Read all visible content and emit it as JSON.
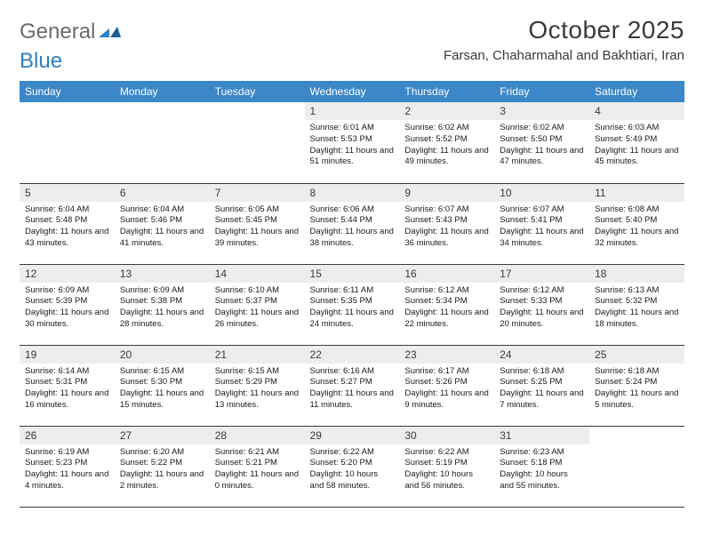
{
  "brand": {
    "part1": "General",
    "part2": "Blue"
  },
  "title": "October 2025",
  "location": "Farsan, Chaharmahal and Bakhtiari, Iran",
  "colors": {
    "header_bg": "#3b87c8",
    "header_fg": "#ffffff",
    "daynum_bg": "#ecedee",
    "text": "#3a3a3a",
    "logo_gray": "#6b6b6b",
    "logo_blue": "#2d7fc0",
    "rule": "#3a3a3a"
  },
  "weekdays": [
    "Sunday",
    "Monday",
    "Tuesday",
    "Wednesday",
    "Thursday",
    "Friday",
    "Saturday"
  ],
  "weeks": [
    [
      {
        "empty": true
      },
      {
        "empty": true
      },
      {
        "empty": true
      },
      {
        "day": "1",
        "sunrise": "6:01 AM",
        "sunset": "5:53 PM",
        "daylight": "11 hours and 51 minutes."
      },
      {
        "day": "2",
        "sunrise": "6:02 AM",
        "sunset": "5:52 PM",
        "daylight": "11 hours and 49 minutes."
      },
      {
        "day": "3",
        "sunrise": "6:02 AM",
        "sunset": "5:50 PM",
        "daylight": "11 hours and 47 minutes."
      },
      {
        "day": "4",
        "sunrise": "6:03 AM",
        "sunset": "5:49 PM",
        "daylight": "11 hours and 45 minutes."
      }
    ],
    [
      {
        "day": "5",
        "sunrise": "6:04 AM",
        "sunset": "5:48 PM",
        "daylight": "11 hours and 43 minutes."
      },
      {
        "day": "6",
        "sunrise": "6:04 AM",
        "sunset": "5:46 PM",
        "daylight": "11 hours and 41 minutes."
      },
      {
        "day": "7",
        "sunrise": "6:05 AM",
        "sunset": "5:45 PM",
        "daylight": "11 hours and 39 minutes."
      },
      {
        "day": "8",
        "sunrise": "6:06 AM",
        "sunset": "5:44 PM",
        "daylight": "11 hours and 38 minutes."
      },
      {
        "day": "9",
        "sunrise": "6:07 AM",
        "sunset": "5:43 PM",
        "daylight": "11 hours and 36 minutes."
      },
      {
        "day": "10",
        "sunrise": "6:07 AM",
        "sunset": "5:41 PM",
        "daylight": "11 hours and 34 minutes."
      },
      {
        "day": "11",
        "sunrise": "6:08 AM",
        "sunset": "5:40 PM",
        "daylight": "11 hours and 32 minutes."
      }
    ],
    [
      {
        "day": "12",
        "sunrise": "6:09 AM",
        "sunset": "5:39 PM",
        "daylight": "11 hours and 30 minutes."
      },
      {
        "day": "13",
        "sunrise": "6:09 AM",
        "sunset": "5:38 PM",
        "daylight": "11 hours and 28 minutes."
      },
      {
        "day": "14",
        "sunrise": "6:10 AM",
        "sunset": "5:37 PM",
        "daylight": "11 hours and 26 minutes."
      },
      {
        "day": "15",
        "sunrise": "6:11 AM",
        "sunset": "5:35 PM",
        "daylight": "11 hours and 24 minutes."
      },
      {
        "day": "16",
        "sunrise": "6:12 AM",
        "sunset": "5:34 PM",
        "daylight": "11 hours and 22 minutes."
      },
      {
        "day": "17",
        "sunrise": "6:12 AM",
        "sunset": "5:33 PM",
        "daylight": "11 hours and 20 minutes."
      },
      {
        "day": "18",
        "sunrise": "6:13 AM",
        "sunset": "5:32 PM",
        "daylight": "11 hours and 18 minutes."
      }
    ],
    [
      {
        "day": "19",
        "sunrise": "6:14 AM",
        "sunset": "5:31 PM",
        "daylight": "11 hours and 16 minutes."
      },
      {
        "day": "20",
        "sunrise": "6:15 AM",
        "sunset": "5:30 PM",
        "daylight": "11 hours and 15 minutes."
      },
      {
        "day": "21",
        "sunrise": "6:15 AM",
        "sunset": "5:29 PM",
        "daylight": "11 hours and 13 minutes."
      },
      {
        "day": "22",
        "sunrise": "6:16 AM",
        "sunset": "5:27 PM",
        "daylight": "11 hours and 11 minutes."
      },
      {
        "day": "23",
        "sunrise": "6:17 AM",
        "sunset": "5:26 PM",
        "daylight": "11 hours and 9 minutes."
      },
      {
        "day": "24",
        "sunrise": "6:18 AM",
        "sunset": "5:25 PM",
        "daylight": "11 hours and 7 minutes."
      },
      {
        "day": "25",
        "sunrise": "6:18 AM",
        "sunset": "5:24 PM",
        "daylight": "11 hours and 5 minutes."
      }
    ],
    [
      {
        "day": "26",
        "sunrise": "6:19 AM",
        "sunset": "5:23 PM",
        "daylight": "11 hours and 4 minutes."
      },
      {
        "day": "27",
        "sunrise": "6:20 AM",
        "sunset": "5:22 PM",
        "daylight": "11 hours and 2 minutes."
      },
      {
        "day": "28",
        "sunrise": "6:21 AM",
        "sunset": "5:21 PM",
        "daylight": "11 hours and 0 minutes."
      },
      {
        "day": "29",
        "sunrise": "6:22 AM",
        "sunset": "5:20 PM",
        "daylight": "10 hours and 58 minutes."
      },
      {
        "day": "30",
        "sunrise": "6:22 AM",
        "sunset": "5:19 PM",
        "daylight": "10 hours and 56 minutes."
      },
      {
        "day": "31",
        "sunrise": "6:23 AM",
        "sunset": "5:18 PM",
        "daylight": "10 hours and 55 minutes."
      },
      {
        "empty": true
      }
    ]
  ],
  "labels": {
    "sunrise": "Sunrise:",
    "sunset": "Sunset:",
    "daylight": "Daylight:"
  }
}
